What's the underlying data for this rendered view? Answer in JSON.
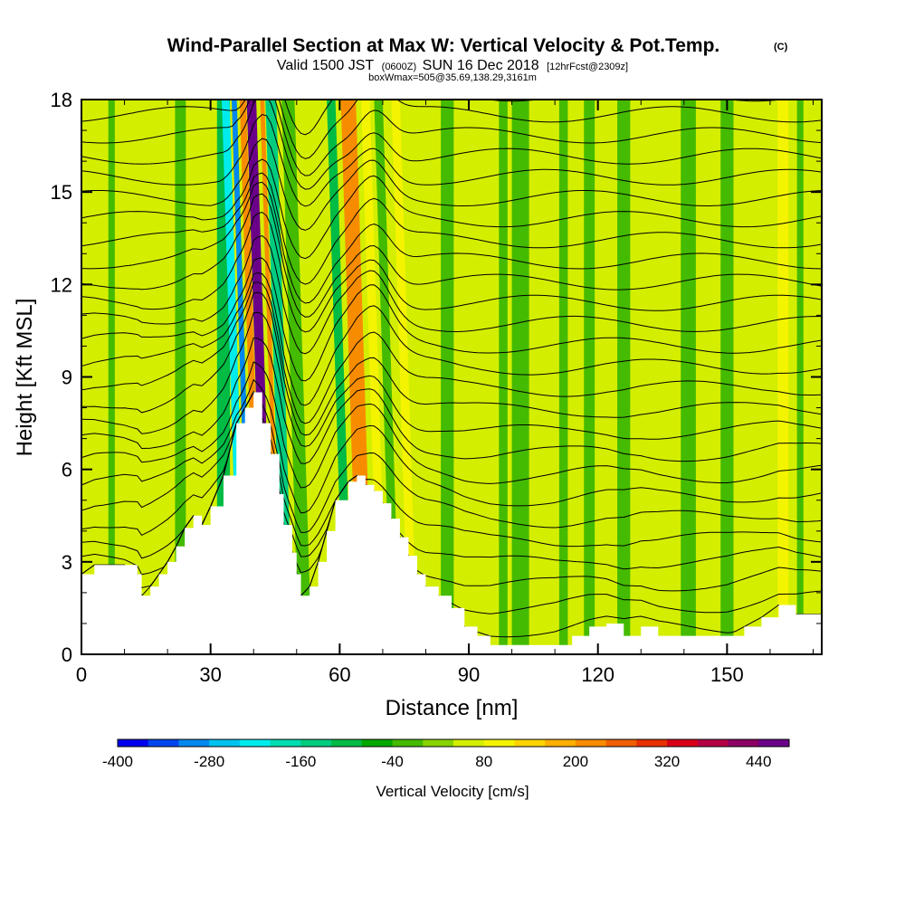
{
  "header": {
    "title": "Wind-Parallel Section at Max W: Vertical Velocity & Pot.Temp.",
    "copyright": "(C)",
    "valid_prefix": "Valid 1500 JST",
    "valid_utc": "(0600Z)",
    "valid_date": "SUN 16 Dec 2018",
    "forecast": "[12hrFcst@2309z]",
    "box_info": "boxWmax=505@35.69,138.29,3161m"
  },
  "chart_data": {
    "type": "heatmap",
    "title": "Wind-Parallel Section at Max W: Vertical Velocity & Pot.Temp.",
    "xlabel": "Distance [nm]",
    "ylabel": "Height [Kft MSL]",
    "xlim": [
      0,
      172
    ],
    "ylim": [
      0,
      18
    ],
    "x_ticks": [
      0,
      30,
      60,
      90,
      120,
      150
    ],
    "y_ticks": [
      0,
      3,
      6,
      9,
      12,
      15,
      18
    ],
    "grid": false,
    "terrain_profile_kft": [
      [
        0,
        2.6
      ],
      [
        3,
        2.9
      ],
      [
        10,
        2.9
      ],
      [
        13,
        2.6
      ],
      [
        14,
        1.9
      ],
      [
        16,
        2.2
      ],
      [
        18,
        2.6
      ],
      [
        20,
        3.0
      ],
      [
        22,
        3.5
      ],
      [
        24,
        4.1
      ],
      [
        26,
        4.5
      ],
      [
        28,
        4.2
      ],
      [
        30,
        4.8
      ],
      [
        33,
        5.8
      ],
      [
        36,
        7.5
      ],
      [
        38,
        8.0
      ],
      [
        40,
        8.5
      ],
      [
        42,
        7.5
      ],
      [
        44,
        6.5
      ],
      [
        46,
        5.2
      ],
      [
        47,
        4.2
      ],
      [
        49,
        3.3
      ],
      [
        50,
        2.6
      ],
      [
        51,
        1.9
      ],
      [
        53,
        2.2
      ],
      [
        55,
        3.0
      ],
      [
        57,
        4.0
      ],
      [
        59,
        5.0
      ],
      [
        62,
        5.6
      ],
      [
        64,
        5.8
      ],
      [
        66,
        5.5
      ],
      [
        68,
        5.3
      ],
      [
        70,
        4.9
      ],
      [
        72,
        4.4
      ],
      [
        74,
        3.8
      ],
      [
        76,
        3.2
      ],
      [
        78,
        2.6
      ],
      [
        80,
        2.2
      ],
      [
        83,
        1.9
      ],
      [
        86,
        1.5
      ],
      [
        89,
        0.9
      ],
      [
        92,
        0.6
      ],
      [
        95,
        0.3
      ],
      [
        100,
        0.3
      ],
      [
        105,
        0.3
      ],
      [
        110,
        0.3
      ],
      [
        114,
        0.6
      ],
      [
        118,
        0.9
      ],
      [
        122,
        1.0
      ],
      [
        126,
        0.6
      ],
      [
        130,
        0.9
      ],
      [
        134,
        0.6
      ],
      [
        140,
        0.6
      ],
      [
        146,
        0.6
      ],
      [
        150,
        0.6
      ],
      [
        154,
        0.9
      ],
      [
        158,
        1.2
      ],
      [
        162,
        1.6
      ],
      [
        166,
        1.3
      ],
      [
        172,
        1.3
      ]
    ],
    "vertical_velocity_bands": [
      {
        "x": 7,
        "w": 1.5,
        "value": -40
      },
      {
        "x": 23,
        "w": 2.5,
        "value": -40
      },
      {
        "x": 33,
        "w": 3.0,
        "value": -100
      },
      {
        "x": 37.5,
        "w": 1.8,
        "value": -220
      },
      {
        "x": 39.5,
        "w": 1.2,
        "value": -300
      },
      {
        "x": 41.5,
        "w": 1.5,
        "value": 200
      },
      {
        "x": 43.5,
        "w": 2.2,
        "value": 480
      },
      {
        "x": 46,
        "w": 1.0,
        "value": 200
      },
      {
        "x": 48,
        "w": 2.5,
        "value": -140
      },
      {
        "x": 52,
        "w": 3.0,
        "value": -40
      },
      {
        "x": 62,
        "w": 2.0,
        "value": -100
      },
      {
        "x": 66,
        "w": 3.5,
        "value": 200
      },
      {
        "x": 70,
        "w": 2.0,
        "value": 80
      },
      {
        "x": 73,
        "w": 2.0,
        "value": -40
      },
      {
        "x": 77,
        "w": 2.0,
        "value": 80
      },
      {
        "x": 85,
        "w": 3.0,
        "value": -40
      },
      {
        "x": 98,
        "w": 2.0,
        "value": -40
      },
      {
        "x": 102,
        "w": 4.0,
        "value": -40
      },
      {
        "x": 112,
        "w": 2.0,
        "value": -40
      },
      {
        "x": 118,
        "w": 2.5,
        "value": -40
      },
      {
        "x": 126,
        "w": 3.0,
        "value": -40
      },
      {
        "x": 141,
        "w": 3.5,
        "value": -40
      },
      {
        "x": 150,
        "w": 3.0,
        "value": -40
      },
      {
        "x": 163,
        "w": 2.5,
        "value": 80
      },
      {
        "x": 167,
        "w": 1.5,
        "value": -40
      }
    ],
    "colorbar": {
      "label": "Vertical Velocity [cm/s]",
      "tick_labels": [
        "-400",
        "-280",
        "-160",
        "-40",
        "80",
        "200",
        "320",
        "440"
      ],
      "tick_values": [
        -400,
        -280,
        -160,
        -40,
        80,
        200,
        320,
        440
      ],
      "range": [
        -400,
        480
      ],
      "step": 40,
      "colors": [
        "#0000ee",
        "#0044ee",
        "#0088ee",
        "#00c2ee",
        "#00ecec",
        "#00ddb0",
        "#00cc80",
        "#00bb44",
        "#00a800",
        "#44bb00",
        "#88d400",
        "#d4ee00",
        "#f4f400",
        "#ffd400",
        "#ffb000",
        "#f88c00",
        "#f06000",
        "#e83000",
        "#d80018",
        "#b40044",
        "#8c0064",
        "#6a0088"
      ]
    },
    "contour_overlay": "Potential temperature (thin black contours)"
  }
}
